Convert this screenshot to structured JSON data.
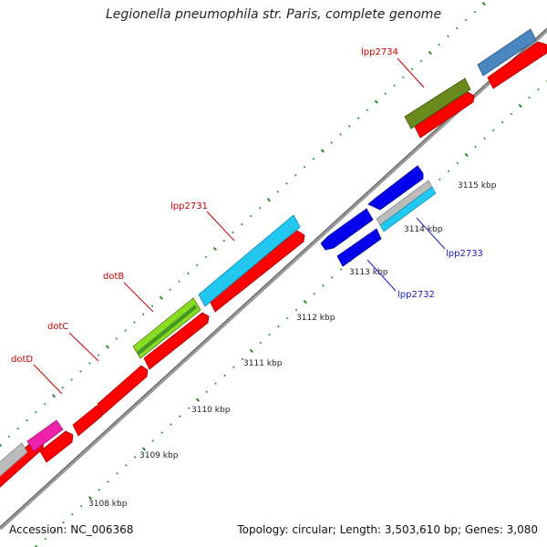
{
  "title": "Legionella pneumophila str. Paris, complete genome",
  "accession": "Accession: NC_006368",
  "summary": "Topology: circular; Length: 3,503,610 bp; Genes: 3,080",
  "scale_labels": [
    "3108 kbp",
    "3109 kbp",
    "3110 kbp",
    "3111 kbp",
    "3112 kbp",
    "3113 kbp",
    "3114 kbp",
    "3115 kbp"
  ],
  "gene_labels": [
    {
      "id": "dotD",
      "text": "dotD",
      "color": "#cc0000"
    },
    {
      "id": "dotC",
      "text": "dotC",
      "color": "#cc0000"
    },
    {
      "id": "dotB",
      "text": "dotB",
      "color": "#cc0000"
    },
    {
      "id": "lpp2731",
      "text": "lpp2731",
      "color": "#cc0000"
    },
    {
      "id": "lpp2734",
      "text": "lpp2734",
      "color": "#cc0000"
    },
    {
      "id": "lpp2732",
      "text": "lpp2732",
      "color": "#1a1acc"
    },
    {
      "id": "lpp2733",
      "text": "lpp2733",
      "color": "#1a1acc"
    }
  ],
  "colors": {
    "cds": "#ff0000",
    "backbone": "#888888",
    "ticks": "#2a8a2a",
    "blue_feature": "#0000ee",
    "cyan_feature": "#22c8f0",
    "olive_feature": "#6a8a1e",
    "lime_feature": "#88dd22",
    "magenta_feature": "#ee22aa",
    "steel_feature": "#4a86c0",
    "gray_feature": "#bbbbbb"
  }
}
